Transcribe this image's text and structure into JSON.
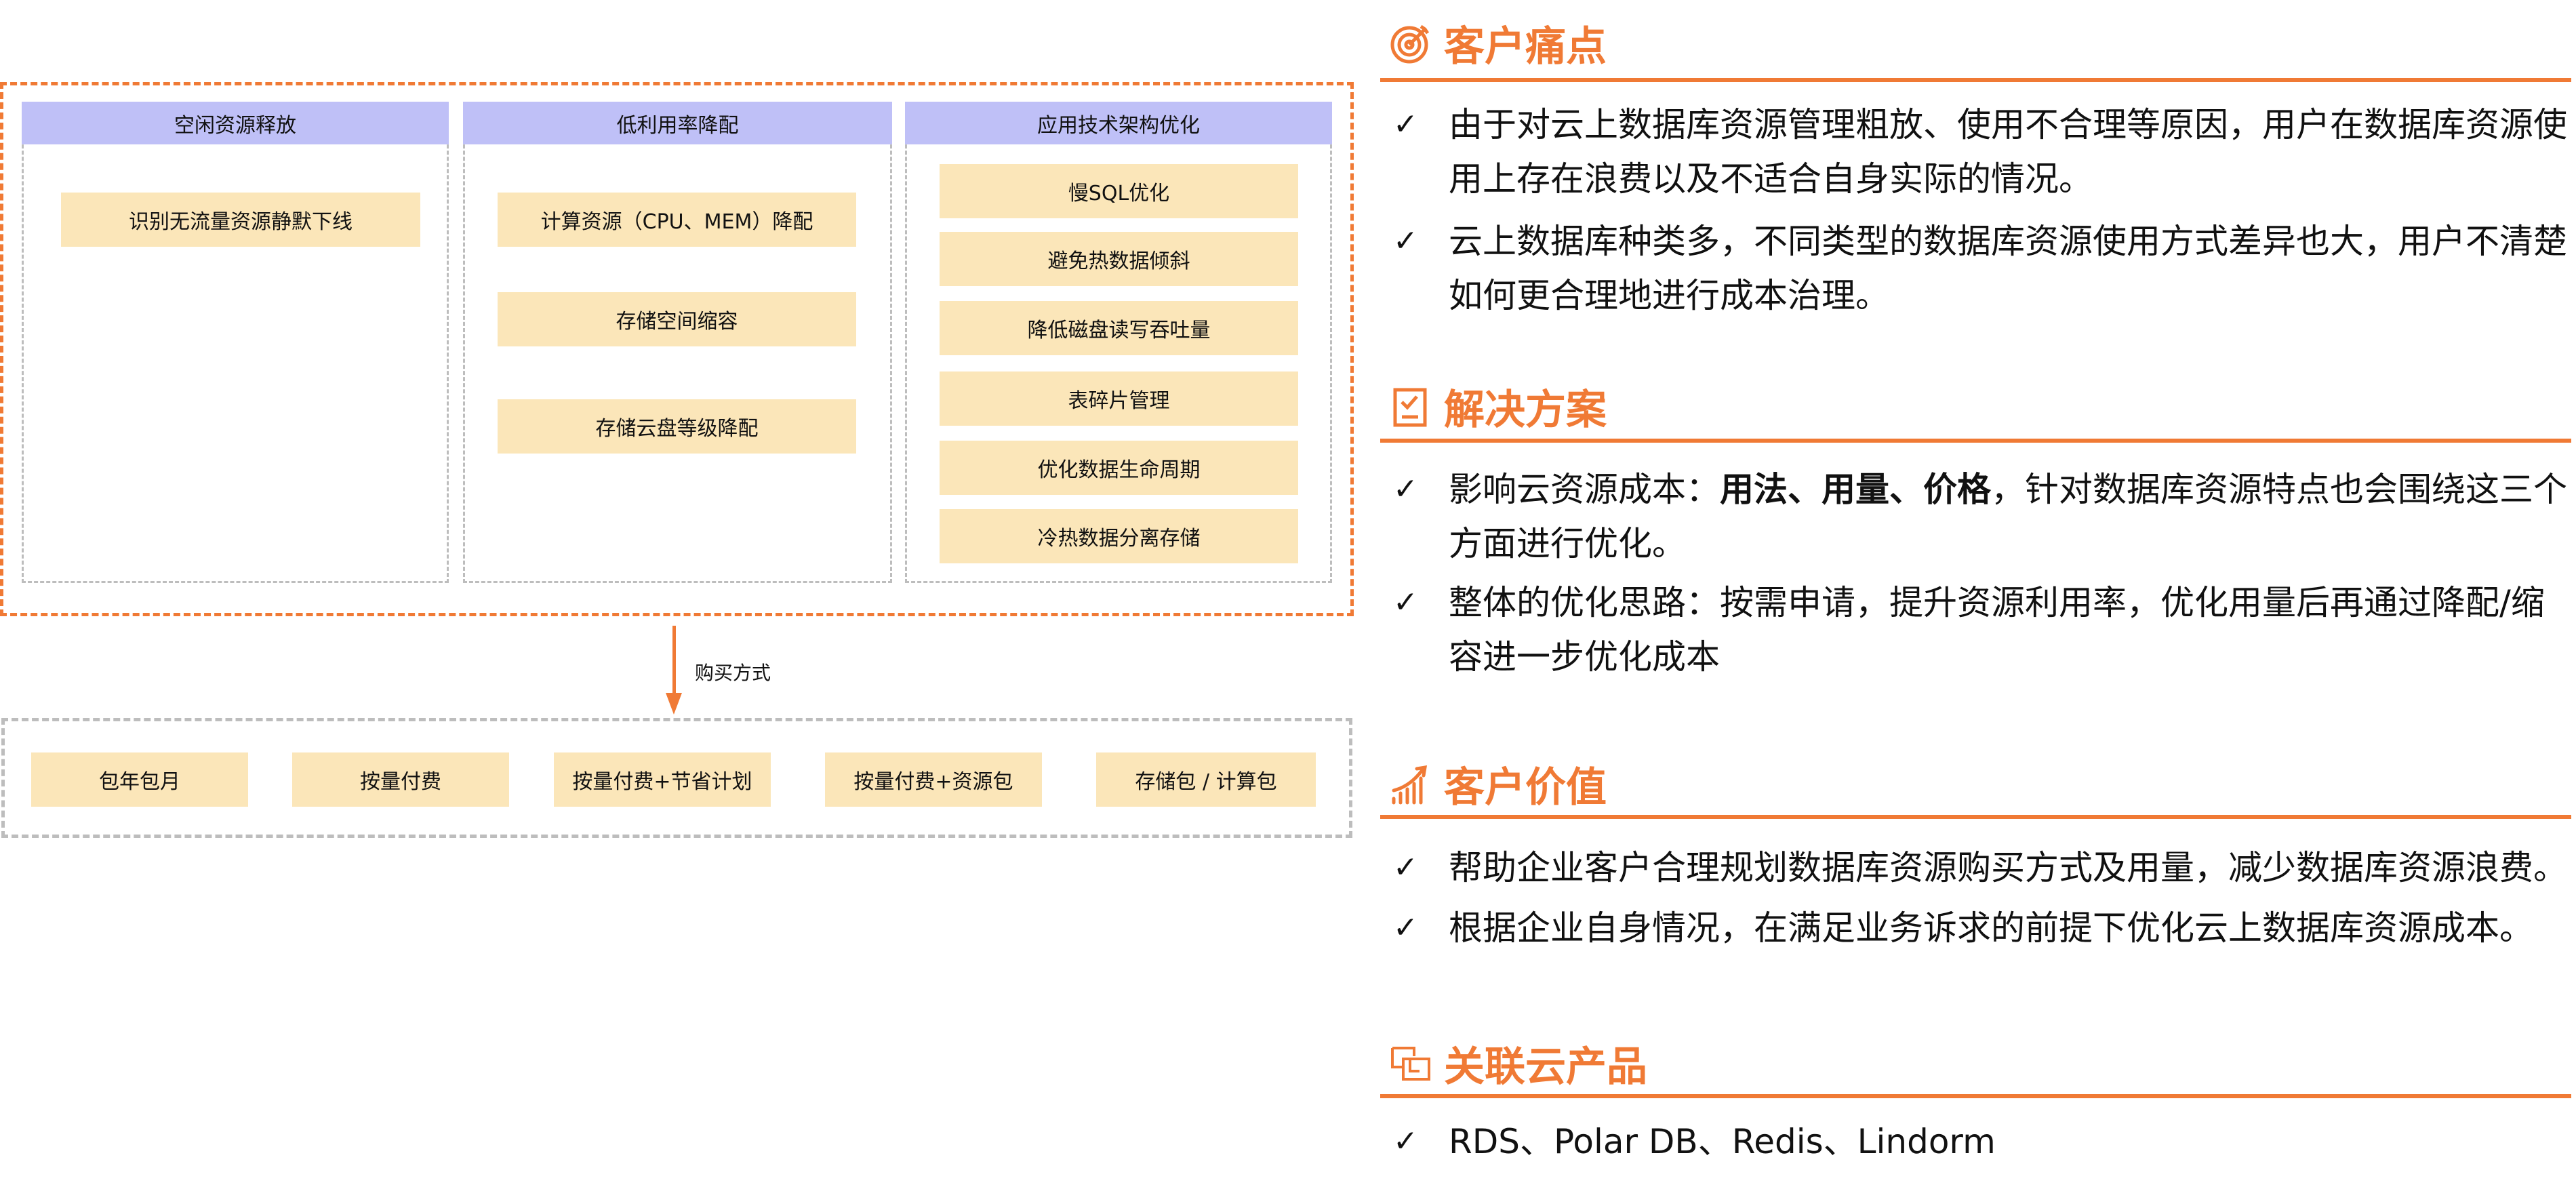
{
  "diagram": {
    "columns": [
      {
        "title": "空闲资源释放",
        "items": [
          "识别无流量资源静默下线"
        ]
      },
      {
        "title": "低利用率降配",
        "items": [
          "计算资源（CPU、MEM）降配",
          "存储空间缩容",
          "存储云盘等级降配"
        ]
      },
      {
        "title": "应用技术架构优化",
        "items": [
          "慢SQL优化",
          "避免热数据倾斜",
          "降低磁盘读写吞吐量",
          "表碎片管理",
          "优化数据生命周期",
          "冷热数据分离存储"
        ]
      }
    ],
    "arrow_label": "购买方式",
    "purchase_options": [
      "包年包月",
      "按量付费",
      "按量付费+节省计划",
      "按量付费+资源包",
      "存储包 / 计算包"
    ]
  },
  "sections": {
    "pain": {
      "title": "客户痛点",
      "icon": "target-icon",
      "bullets": [
        "由于对云上数据库资源管理粗放、使用不合理等原因，用户在数据库资源使用上存在浪费以及不适合自身实际的情况。",
        "云上数据库种类多，不同类型的数据库资源使用方式差异也大，用户不清楚如何更合理地进行成本治理。"
      ]
    },
    "solution": {
      "title": "解决方案",
      "icon": "checklist-icon",
      "b1_prefix": "影响云资源成本：",
      "b1_bold": "用法、用量、价格",
      "b1_suffix": "，针对数据库资源特点也会围绕这三个方面进行优化。",
      "b2": "整体的优化思路：按需申请，提升资源利用率，优化用量后再通过降配/缩容进一步优化成本"
    },
    "value": {
      "title": "客户价值",
      "icon": "growth-chart-icon",
      "bullets": [
        "帮助企业客户合理规划数据库资源购买方式及用量，减少数据库资源浪费。",
        "根据企业自身情况，在满足业务诉求的前提下优化云上数据库资源成本。"
      ]
    },
    "products": {
      "title": "关联云产品",
      "icon": "linked-squares-icon",
      "bullets": [
        "RDS、Polar DB、Redis、Lindorm"
      ]
    },
    "check": "✓"
  },
  "colors": {
    "accent": "#f07a35",
    "header": "#bfc0f7",
    "box": "#fbe6b9",
    "dash": "#bdbdbd"
  }
}
